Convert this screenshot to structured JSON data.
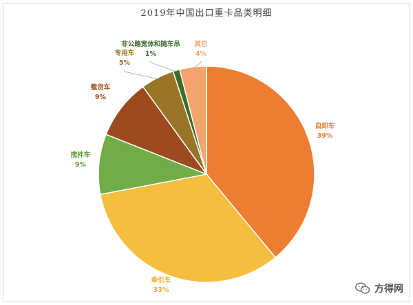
{
  "chart_data": {
    "type": "pie",
    "title": "2019年中国出口重卡品类明细",
    "slices": [
      {
        "label": "自卸车",
        "value": 39,
        "value_label": "39%",
        "color": "#ED7D31"
      },
      {
        "label": "牵引车",
        "value": 33,
        "value_label": "33%",
        "color": "#F6BE3F"
      },
      {
        "label": "搅拌车",
        "value": 9,
        "value_label": "9%",
        "color": "#70AD47"
      },
      {
        "label": "载货车",
        "value": 9,
        "value_label": "9%",
        "color": "#9E4A1F"
      },
      {
        "label": "专用车",
        "value": 5,
        "value_label": "5%",
        "color": "#997326"
      },
      {
        "label": "非公路宽体和随车吊",
        "value": 1,
        "value_label": "1%",
        "color": "#3E6B2B"
      },
      {
        "label": "其它",
        "value": 4,
        "value_label": "4%",
        "color": "#F2A46C"
      }
    ],
    "start_angle_deg": 0,
    "direction": "clockwise",
    "legend": "none",
    "data_labels": "category and percent"
  },
  "watermark": {
    "text": "方得网",
    "icon": "wechat-icon"
  }
}
